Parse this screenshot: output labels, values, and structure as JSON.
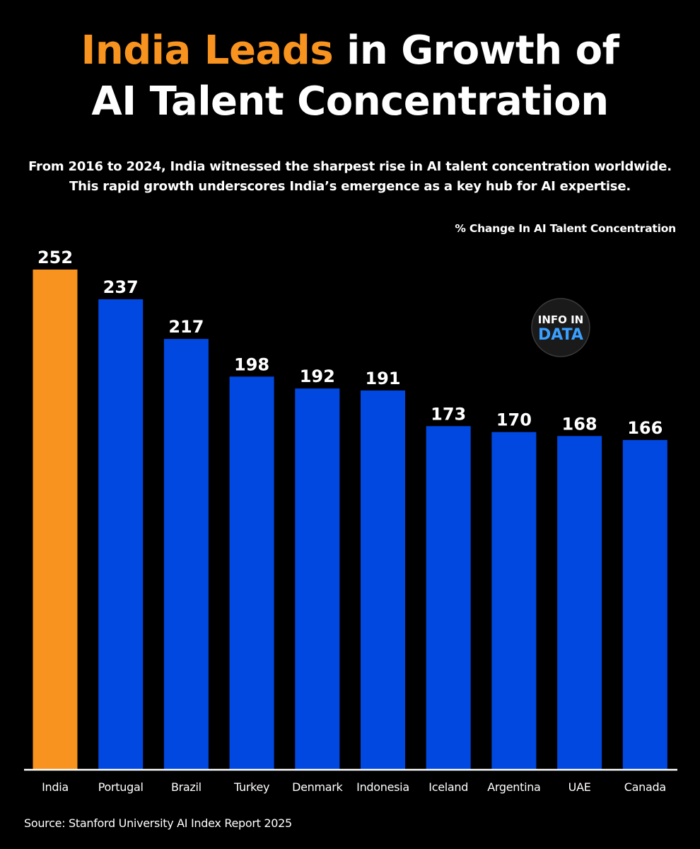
{
  "title": {
    "highlight": "India Leads",
    "rest_line1": " in Growth of",
    "line2": "AI Talent Concentration"
  },
  "subtitle": {
    "line1": "From 2016 to 2024, India witnessed the sharpest rise in AI talent concentration worldwide.",
    "line2": "This rapid growth underscores India’s emergence as a key hub for AI expertise."
  },
  "logo": {
    "text_top": "INFO IN",
    "text_bottom": "DATA"
  },
  "source": "Source: Stanford University AI Index Report 2025",
  "colors": {
    "highlight": "#f7931e",
    "bar_default": "#0048e0",
    "bar_highlight": "#f7931e",
    "background": "#000000",
    "axis": "#ffffff"
  },
  "chart_data": {
    "type": "bar",
    "ylabel": "% Change In AI Talent Concentration",
    "categories": [
      "India",
      "Portugal",
      "Brazil",
      "Turkey",
      "Denmark",
      "Indonesia",
      "Iceland",
      "Argentina",
      "UAE",
      "Canada"
    ],
    "values": [
      252,
      237,
      217,
      198,
      192,
      191,
      173,
      170,
      168,
      166
    ],
    "highlight_category": "India",
    "data_labels": true,
    "grid": false,
    "ylim": [
      0,
      252
    ]
  }
}
